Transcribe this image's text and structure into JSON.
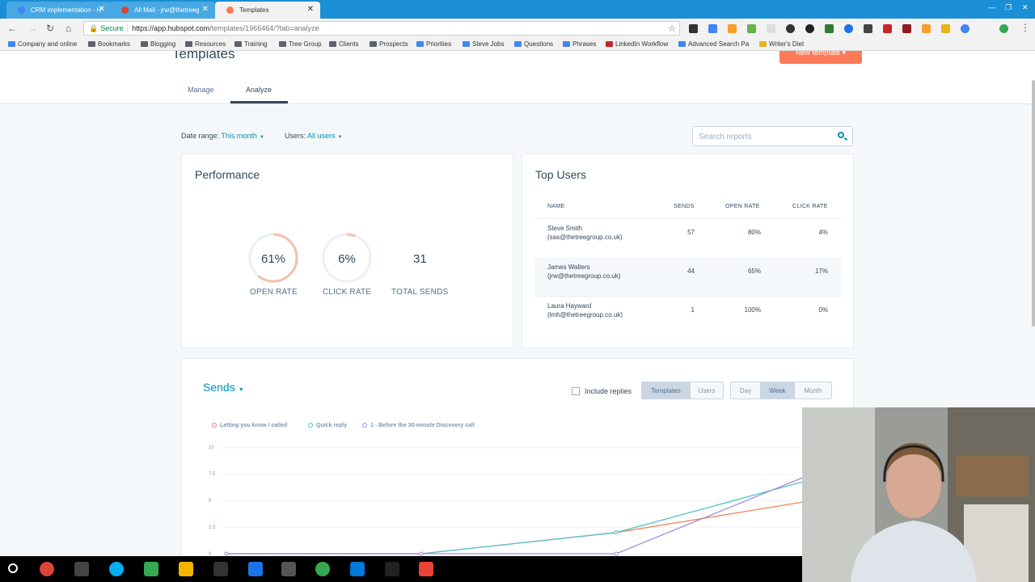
{
  "browser": {
    "tabs": [
      {
        "label": "CRM implementation - H",
        "active": false,
        "icon_color": "#4285f4"
      },
      {
        "label": "All Mail - jrw@thetreeg",
        "active": false,
        "icon_color": "#db4437"
      },
      {
        "label": "Templates",
        "active": true,
        "icon_color": "#ff7a59"
      }
    ],
    "secure_label": "Secure",
    "url_host": "https://app.hubspot.com",
    "url_path": "/templates/1966464/?tab=analyze",
    "bookmarks": [
      {
        "label": "Company and online",
        "type": "app"
      },
      {
        "label": "Bookmarks",
        "type": "folder"
      },
      {
        "label": "Blogging",
        "type": "folder"
      },
      {
        "label": "Resources",
        "type": "folder"
      },
      {
        "label": "Training",
        "type": "folder"
      },
      {
        "label": "Tree Group",
        "type": "folder"
      },
      {
        "label": "Clients",
        "type": "folder"
      },
      {
        "label": "Prospects",
        "type": "folder"
      },
      {
        "label": "Priorities",
        "type": "app"
      },
      {
        "label": "Steve Jobs",
        "type": "app"
      },
      {
        "label": "Questions",
        "type": "app"
      },
      {
        "label": "Phrases",
        "type": "app"
      },
      {
        "label": "LinkedIn Workflow",
        "type": "app"
      },
      {
        "label": "Advanced Search Pa",
        "type": "app"
      },
      {
        "label": "Writer's Diet",
        "type": "app"
      }
    ]
  },
  "page": {
    "title": "Templates",
    "new_button": "New template ▾",
    "tabs": [
      "Manage",
      "Analyze"
    ],
    "filters": {
      "date_label": "Date range:",
      "date_value": "This month",
      "users_label": "Users:",
      "users_value": "All users"
    },
    "search_placeholder": "Search reports"
  },
  "performance": {
    "title": "Performance",
    "open_rate": {
      "value": "61%",
      "label": "OPEN RATE",
      "fraction": 0.61
    },
    "click_rate": {
      "value": "6%",
      "label": "CLICK RATE",
      "fraction": 0.06
    },
    "total_sends": {
      "value": "31",
      "label": "TOTAL SENDS"
    }
  },
  "top_users": {
    "title": "Top Users",
    "columns": [
      "NAME",
      "SENDS",
      "OPEN RATE",
      "CLICK RATE"
    ],
    "rows": [
      {
        "name": "Steve Smith",
        "email": "(sas@thetreegroup.co.uk)",
        "sends": "57",
        "open_rate": "80%",
        "click_rate": "4%"
      },
      {
        "name": "James Walters",
        "email": "(jrw@thetreegroup.co.uk)",
        "sends": "44",
        "open_rate": "65%",
        "click_rate": "17%"
      },
      {
        "name": "Laura Hayward",
        "email": "(lmh@thetreegroup.co.uk)",
        "sends": "1",
        "open_rate": "100%",
        "click_rate": "0%"
      }
    ]
  },
  "sends": {
    "title": "Sends",
    "include_replies": "Include replies",
    "group_buttons": [
      "Templates",
      "Users"
    ],
    "group_active": "Templates",
    "period_buttons": [
      "Day",
      "Week",
      "Month"
    ],
    "period_active": "Week"
  },
  "chart_data": {
    "type": "line",
    "y_ticks": [
      "10",
      "7.5",
      "5",
      "2.5",
      "0"
    ],
    "ylim": [
      0,
      10
    ],
    "x": [
      0,
      1,
      2,
      3
    ],
    "series": [
      {
        "name": "Letting you know I called",
        "color": "#f2845c",
        "values": [
          0,
          0,
          2,
          5
        ]
      },
      {
        "name": "Quick reply",
        "color": "#4fc3c7",
        "values": [
          0,
          0,
          2,
          7
        ]
      },
      {
        "name": "1 - Before the 30-minute Discovery call",
        "color": "#a28ee0",
        "values": [
          0,
          0,
          0,
          7.5
        ]
      }
    ]
  }
}
